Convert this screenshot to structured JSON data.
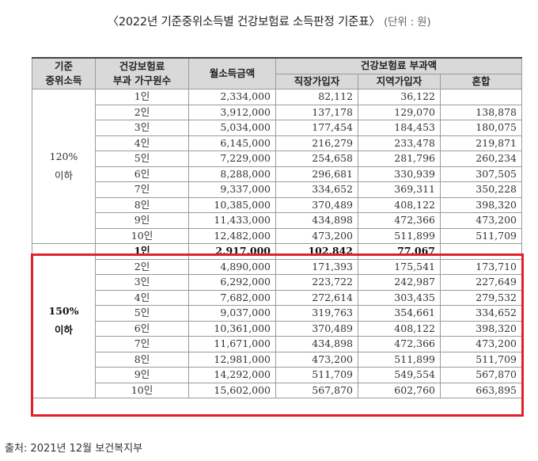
{
  "title": {
    "main": "〈2022년 기준중위소득별 건강보험료 소득판정 기준표〉",
    "unit": "(단위 : 원)"
  },
  "table": {
    "headers": {
      "group": [
        "기준",
        "중위소득"
      ],
      "household": [
        "건강보험료",
        "부과 가구원수"
      ],
      "income": "월소득금액",
      "premium": "건강보험료 부과액",
      "sub": [
        "직장가입자",
        "지역가입자",
        "혼합"
      ]
    },
    "groups": [
      {
        "label": [
          "120%",
          "이하"
        ],
        "rows": [
          [
            "1인",
            "2,334,000",
            "82,112",
            "36,122",
            ""
          ],
          [
            "2인",
            "3,912,000",
            "137,178",
            "129,070",
            "138,878"
          ],
          [
            "3인",
            "5,034,000",
            "177,454",
            "184,453",
            "180,075"
          ],
          [
            "4인",
            "6,145,000",
            "216,279",
            "233,478",
            "219,871"
          ],
          [
            "5인",
            "7,229,000",
            "254,658",
            "281,796",
            "260,234"
          ],
          [
            "6인",
            "8,288,000",
            "296,681",
            "330,939",
            "307,505"
          ],
          [
            "7인",
            "9,337,000",
            "334,652",
            "369,311",
            "350,228"
          ],
          [
            "8인",
            "10,385,000",
            "370,489",
            "408,122",
            "398,320"
          ],
          [
            "9인",
            "11,433,000",
            "434,898",
            "472,366",
            "473,200"
          ],
          [
            "10인",
            "12,482,000",
            "473,200",
            "511,899",
            "511,709"
          ]
        ]
      },
      {
        "label": [
          "150%",
          "이하"
        ],
        "rows": [
          [
            "1인",
            "2,917,000",
            "102,842",
            "77,067",
            ""
          ],
          [
            "2인",
            "4,890,000",
            "171,393",
            "175,541",
            "173,710"
          ],
          [
            "3인",
            "6,292,000",
            "223,722",
            "242,987",
            "227,649"
          ],
          [
            "4인",
            "7,682,000",
            "272,614",
            "303,435",
            "279,532"
          ],
          [
            "5인",
            "9,037,000",
            "319,763",
            "354,661",
            "334,652"
          ],
          [
            "6인",
            "10,361,000",
            "370,489",
            "408,122",
            "398,320"
          ],
          [
            "7인",
            "11,671,000",
            "434,898",
            "472,366",
            "473,200"
          ],
          [
            "8인",
            "12,981,000",
            "473,200",
            "511,899",
            "511,709"
          ],
          [
            "9인",
            "14,292,000",
            "511,709",
            "549,554",
            "567,870"
          ],
          [
            "10인",
            "15,602,000",
            "567,870",
            "602,760",
            "663,895"
          ]
        ]
      }
    ]
  },
  "highlight_color": "#e0202a",
  "source": "출처: 2021년 12월 보건복지부"
}
